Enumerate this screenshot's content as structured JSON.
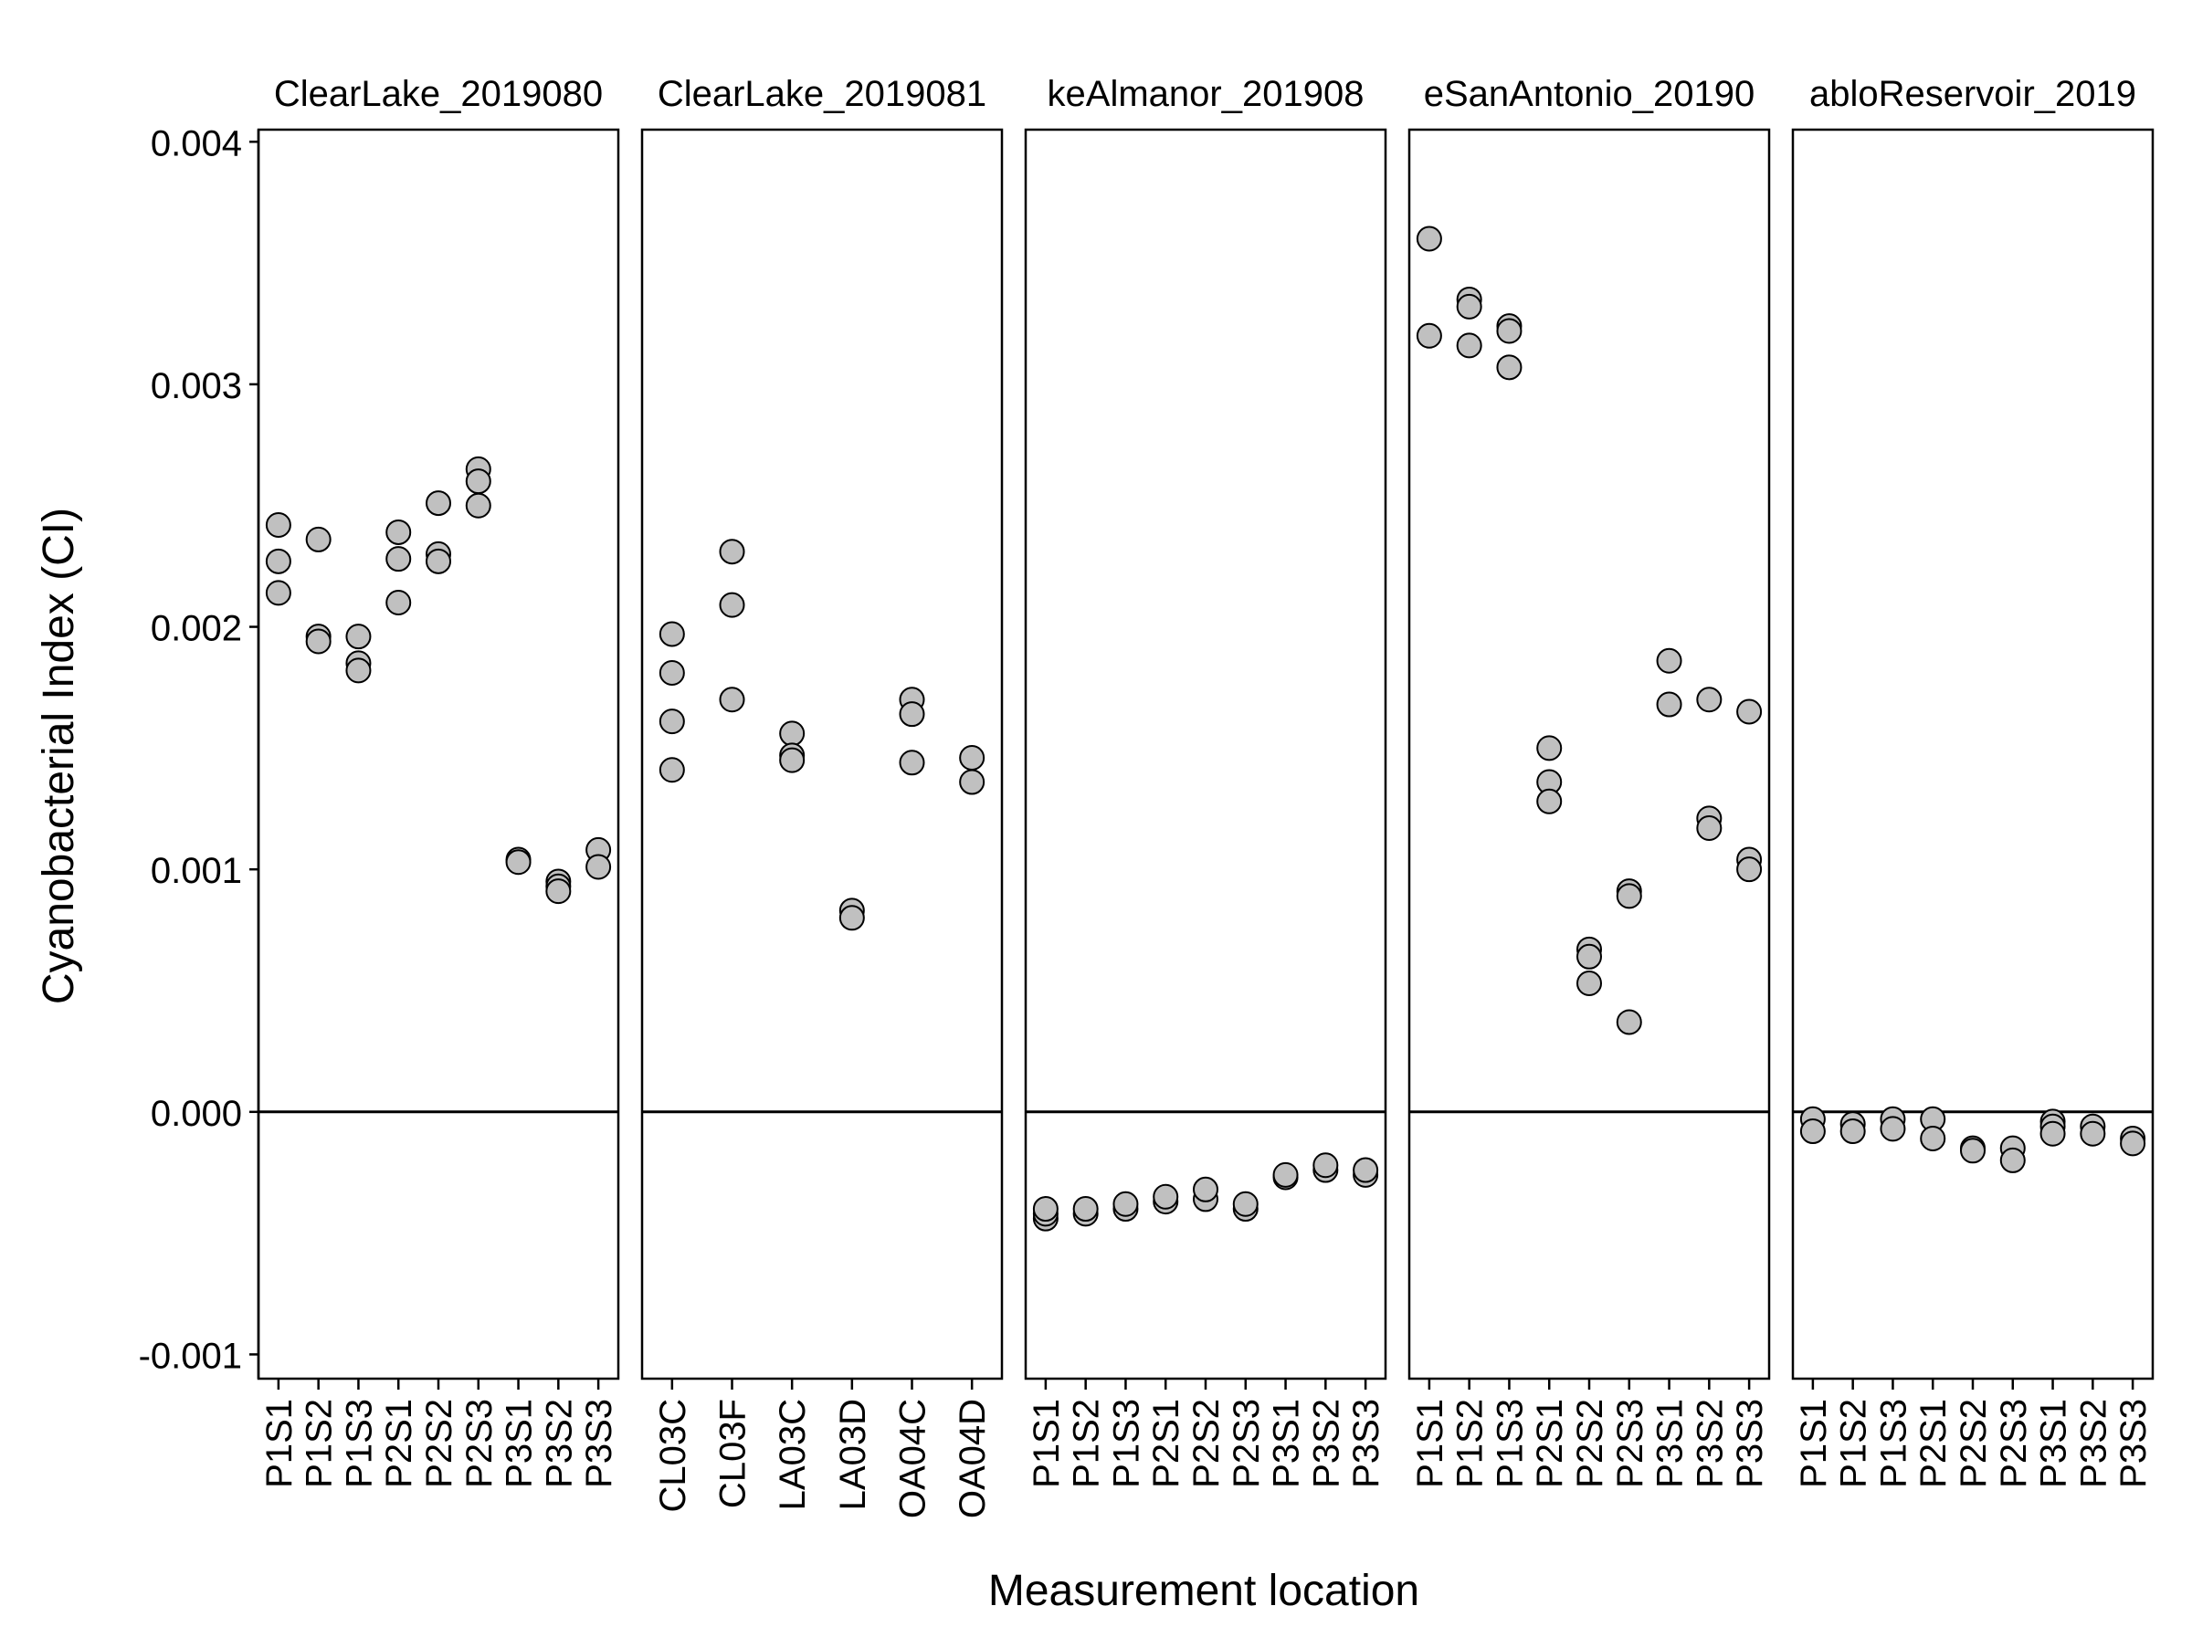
{
  "chart_data": {
    "type": "scatter",
    "ylabel": "Cyanobacterial Index (CI)",
    "xlabel": "Measurement location",
    "ylim": [
      -0.0011,
      0.00405
    ],
    "y_ticks": [
      -0.001,
      0.0,
      0.001,
      0.002,
      0.003,
      0.004
    ],
    "y_tick_labels": [
      "-0.001",
      "0.000",
      "0.001",
      "0.002",
      "0.003",
      "0.004"
    ],
    "reference_line_y": 0,
    "grid": false,
    "legend": "none",
    "point_fill": "#c0c0c0",
    "point_stroke": "#000000",
    "panels": [
      {
        "title": "ClearLake_2019080",
        "categories": [
          "P1S1",
          "P1S2",
          "P1S3",
          "P2S1",
          "P2S2",
          "P2S3",
          "P3S1",
          "P3S2",
          "P3S3"
        ],
        "points": [
          [
            "P1S1",
            0.00242
          ],
          [
            "P1S1",
            0.00227
          ],
          [
            "P1S1",
            0.00214
          ],
          [
            "P1S2",
            0.00236
          ],
          [
            "P1S2",
            0.00196
          ],
          [
            "P1S2",
            0.00194
          ],
          [
            "P1S3",
            0.00196
          ],
          [
            "P1S3",
            0.00185
          ],
          [
            "P1S3",
            0.00182
          ],
          [
            "P2S1",
            0.00239
          ],
          [
            "P2S1",
            0.00228
          ],
          [
            "P2S1",
            0.0021
          ],
          [
            "P2S2",
            0.00251
          ],
          [
            "P2S2",
            0.0023
          ],
          [
            "P2S2",
            0.00227
          ],
          [
            "P2S3",
            0.00265
          ],
          [
            "P2S3",
            0.0026
          ],
          [
            "P2S3",
            0.0025
          ],
          [
            "P3S1",
            0.00104
          ],
          [
            "P3S1",
            0.00103
          ],
          [
            "P3S2",
            0.00095
          ],
          [
            "P3S2",
            0.00093
          ],
          [
            "P3S2",
            0.00091
          ],
          [
            "P3S3",
            0.00108
          ],
          [
            "P3S3",
            0.00101
          ]
        ]
      },
      {
        "title": "ClearLake_2019081",
        "categories": [
          "CL03C",
          "CL03F",
          "LA03C",
          "LA03D",
          "OA04C",
          "OA04D"
        ],
        "points": [
          [
            "CL03C",
            0.00197
          ],
          [
            "CL03C",
            0.00181
          ],
          [
            "CL03C",
            0.00161
          ],
          [
            "CL03C",
            0.00141
          ],
          [
            "CL03F",
            0.00231
          ],
          [
            "CL03F",
            0.00209
          ],
          [
            "CL03F",
            0.0017
          ],
          [
            "LA03C",
            0.00156
          ],
          [
            "LA03C",
            0.00147
          ],
          [
            "LA03C",
            0.00145
          ],
          [
            "LA03D",
            0.00083
          ],
          [
            "LA03D",
            0.0008
          ],
          [
            "OA04C",
            0.0017
          ],
          [
            "OA04C",
            0.00164
          ],
          [
            "OA04C",
            0.00144
          ],
          [
            "OA04D",
            0.00146
          ],
          [
            "OA04D",
            0.00136
          ]
        ]
      },
      {
        "title": "keAlmanor_201908",
        "categories": [
          "P1S1",
          "P1S2",
          "P1S3",
          "P2S1",
          "P2S2",
          "P2S3",
          "P3S1",
          "P3S2",
          "P3S3"
        ],
        "points": [
          [
            "P1S1",
            -0.00044
          ],
          [
            "P1S1",
            -0.00042
          ],
          [
            "P1S1",
            -0.0004
          ],
          [
            "P1S2",
            -0.00042
          ],
          [
            "P1S2",
            -0.0004
          ],
          [
            "P1S3",
            -0.0004
          ],
          [
            "P1S3",
            -0.00038
          ],
          [
            "P2S1",
            -0.00037
          ],
          [
            "P2S1",
            -0.00035
          ],
          [
            "P2S2",
            -0.00036
          ],
          [
            "P2S2",
            -0.00032
          ],
          [
            "P2S3",
            -0.0004
          ],
          [
            "P2S3",
            -0.00038
          ],
          [
            "P3S1",
            -0.00027
          ],
          [
            "P3S1",
            -0.00026
          ],
          [
            "P3S2",
            -0.00024
          ],
          [
            "P3S2",
            -0.00022
          ],
          [
            "P3S3",
            -0.00026
          ],
          [
            "P3S3",
            -0.00024
          ]
        ]
      },
      {
        "title": "eSanAntonio_20190",
        "categories": [
          "P1S1",
          "P1S2",
          "P1S3",
          "P2S1",
          "P2S2",
          "P2S3",
          "P3S1",
          "P3S2",
          "P3S3"
        ],
        "points": [
          [
            "P1S1",
            0.0036
          ],
          [
            "P1S1",
            0.0032
          ],
          [
            "P1S2",
            0.00335
          ],
          [
            "P1S2",
            0.00332
          ],
          [
            "P1S2",
            0.00316
          ],
          [
            "P1S3",
            0.00324
          ],
          [
            "P1S3",
            0.00322
          ],
          [
            "P1S3",
            0.00307
          ],
          [
            "P2S1",
            0.0015
          ],
          [
            "P2S1",
            0.00136
          ],
          [
            "P2S1",
            0.00128
          ],
          [
            "P2S2",
            0.00067
          ],
          [
            "P2S2",
            0.00064
          ],
          [
            "P2S2",
            0.00053
          ],
          [
            "P2S3",
            0.00091
          ],
          [
            "P2S3",
            0.00089
          ],
          [
            "P2S3",
            0.00037
          ],
          [
            "P3S1",
            0.00186
          ],
          [
            "P3S1",
            0.00168
          ],
          [
            "P3S2",
            0.0017
          ],
          [
            "P3S2",
            0.00121
          ],
          [
            "P3S2",
            0.00117
          ],
          [
            "P3S3",
            0.00165
          ],
          [
            "P3S3",
            0.00104
          ],
          [
            "P3S3",
            0.001
          ]
        ]
      },
      {
        "title": "abloReservoir_2019",
        "categories": [
          "P1S1",
          "P1S2",
          "P1S3",
          "P2S1",
          "P2S2",
          "P2S3",
          "P3S1",
          "P3S2",
          "P3S3"
        ],
        "points": [
          [
            "P1S1",
            -3e-05
          ],
          [
            "P1S1",
            -8e-05
          ],
          [
            "P1S2",
            -5e-05
          ],
          [
            "P1S2",
            -8e-05
          ],
          [
            "P1S3",
            -3e-05
          ],
          [
            "P1S3",
            -7e-05
          ],
          [
            "P2S1",
            -3e-05
          ],
          [
            "P2S1",
            -0.00011
          ],
          [
            "P2S2",
            -0.00015
          ],
          [
            "P2S2",
            -0.00016
          ],
          [
            "P2S3",
            -0.00015
          ],
          [
            "P2S3",
            -0.0002
          ],
          [
            "P3S1",
            -4e-05
          ],
          [
            "P3S1",
            -6e-05
          ],
          [
            "P3S1",
            -9e-05
          ],
          [
            "P3S2",
            -6e-05
          ],
          [
            "P3S2",
            -9e-05
          ],
          [
            "P3S3",
            -0.00011
          ],
          [
            "P3S3",
            -0.00013
          ]
        ]
      }
    ]
  }
}
